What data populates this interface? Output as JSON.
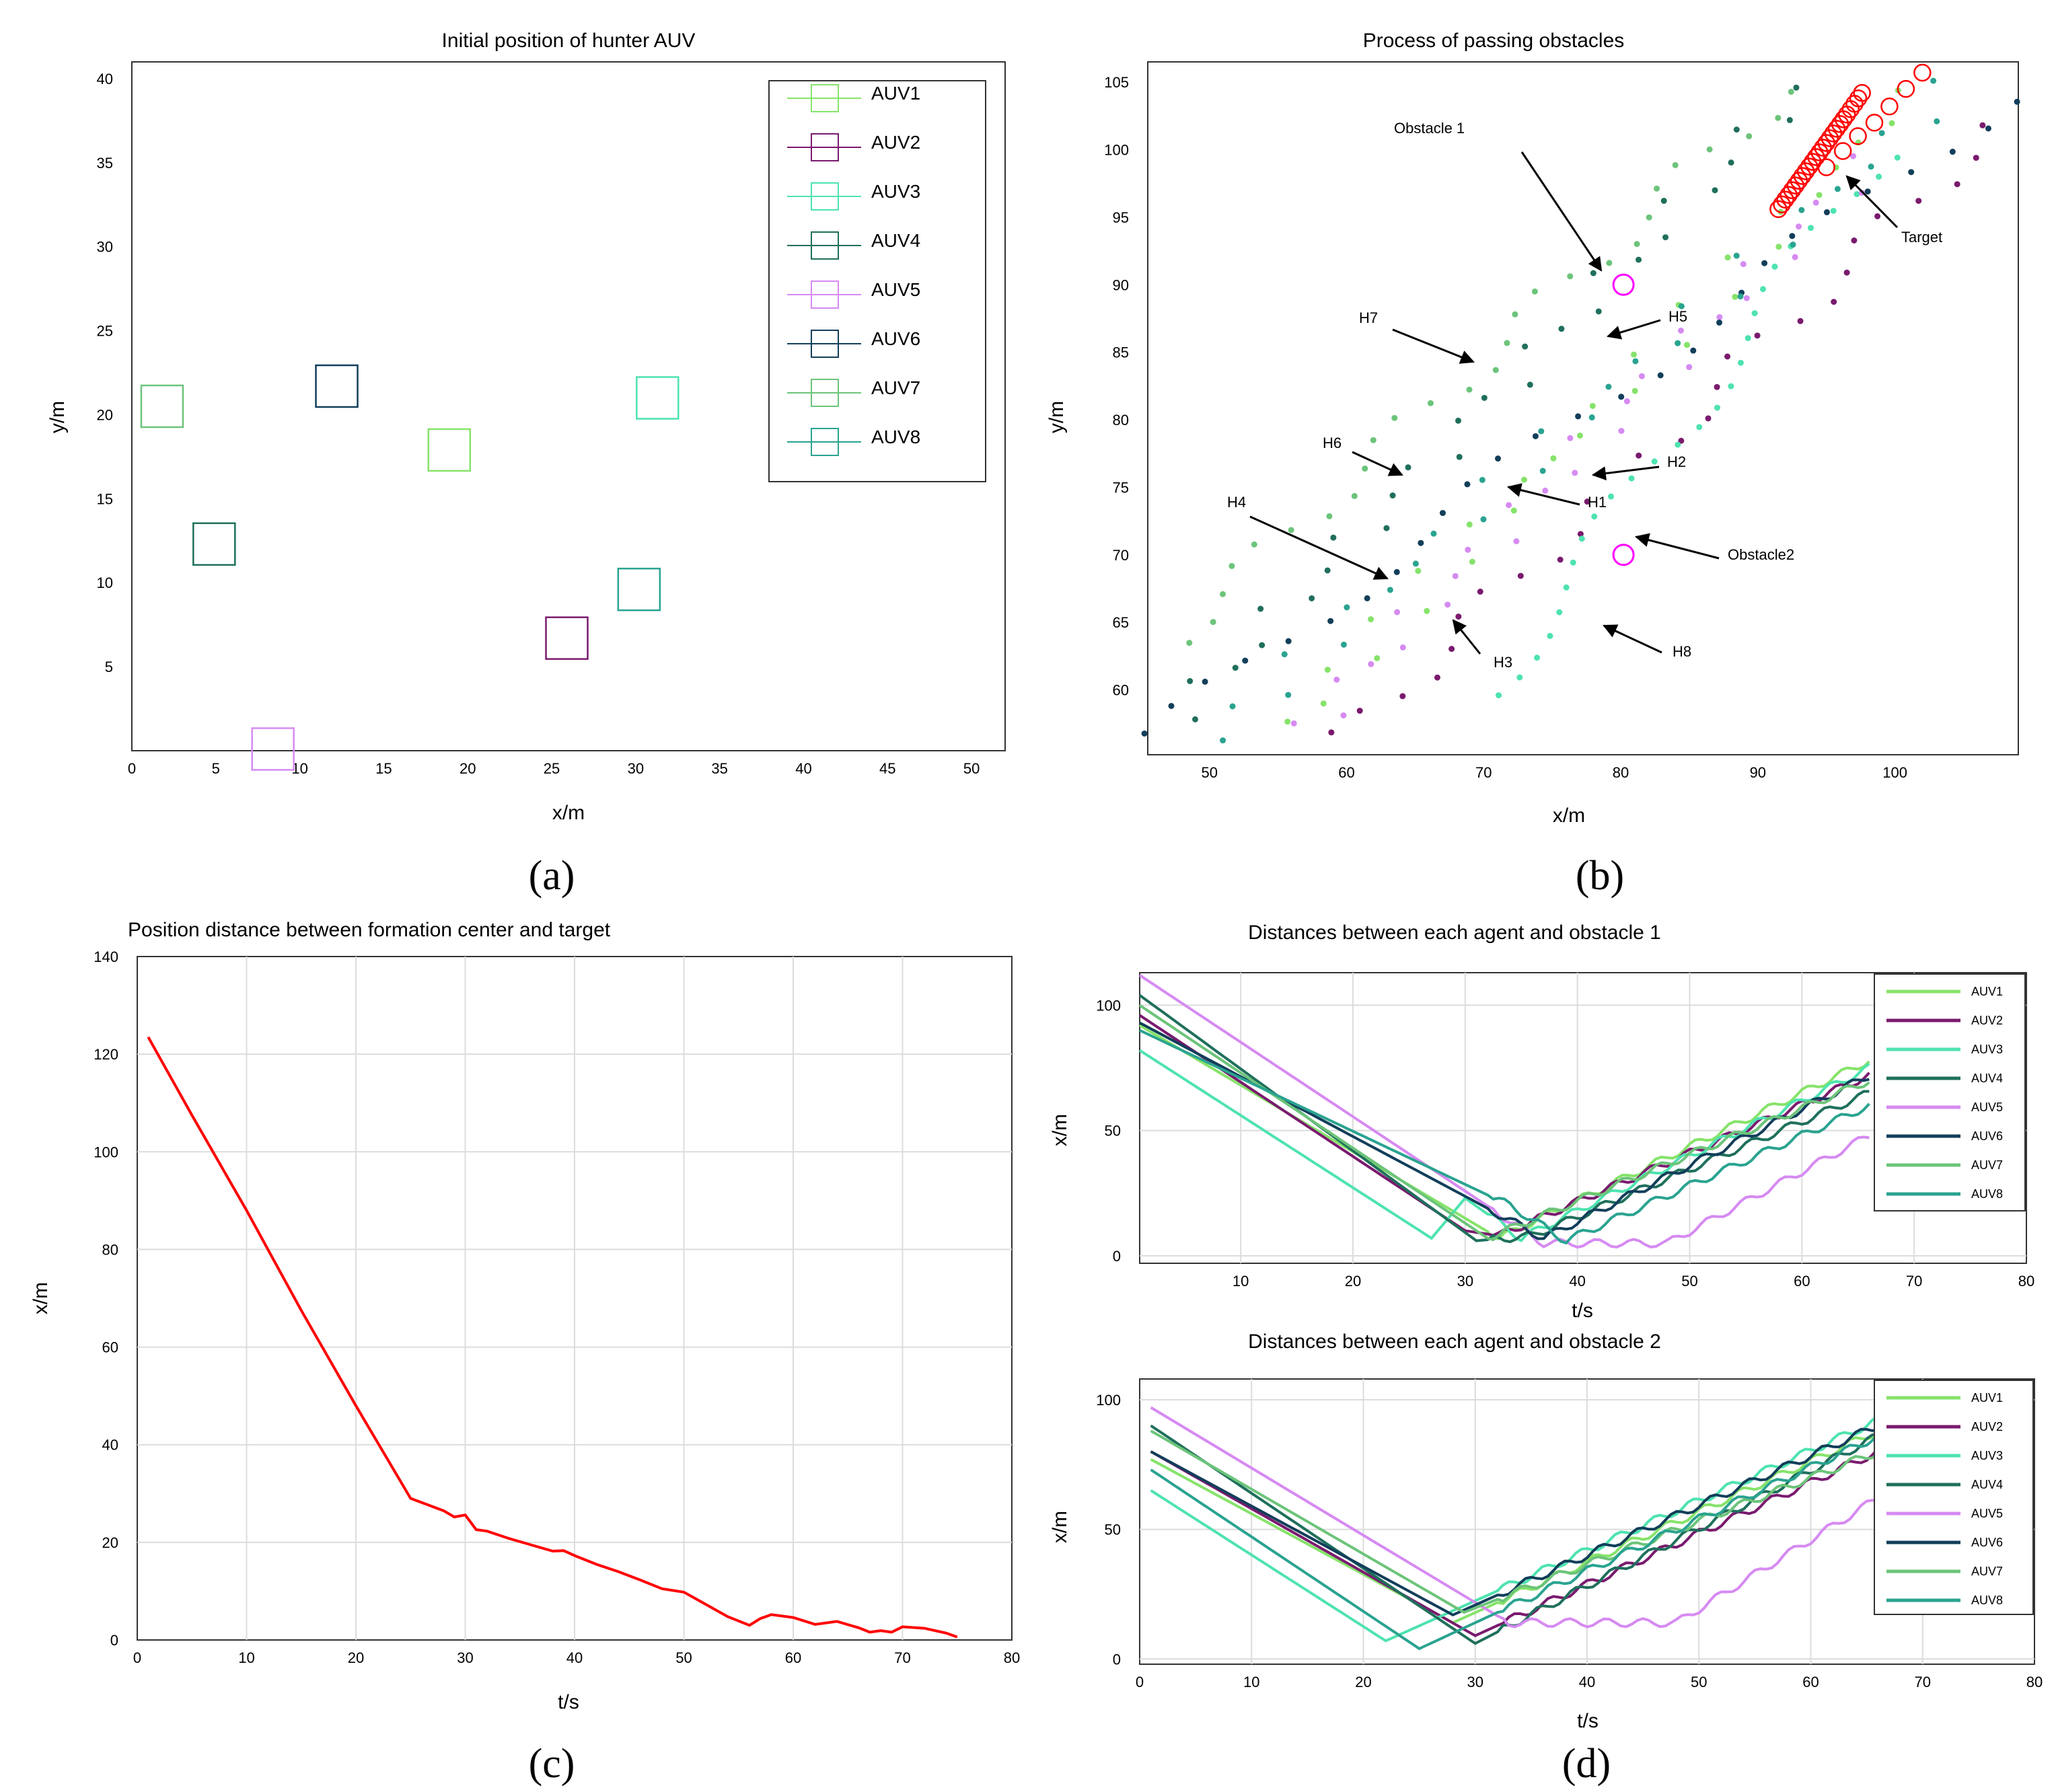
{
  "chart_data": [
    {
      "id": "a",
      "type": "scatter",
      "caption": "(a)",
      "title": "Initial position of hunter AUV",
      "xlabel": "x/m",
      "ylabel": "y/m",
      "xlim": [
        0,
        52
      ],
      "ylim": [
        0,
        41
      ],
      "xticks": [
        0,
        5,
        10,
        15,
        20,
        25,
        30,
        35,
        40,
        45,
        50
      ],
      "yticks": [
        5,
        10,
        15,
        20,
        25,
        30,
        35,
        40
      ],
      "grid": false,
      "legend_position": "top-right",
      "series": [
        {
          "name": "AUV1",
          "color": "#86e36a",
          "x": 18.9,
          "y": 17.9
        },
        {
          "name": "AUV2",
          "color": "#7a1a6e",
          "x": 25.9,
          "y": 6.7
        },
        {
          "name": "AUV3",
          "color": "#4ee3b0",
          "x": 31.3,
          "y": 21.0
        },
        {
          "name": "AUV4",
          "color": "#1f6f5c",
          "x": 4.9,
          "y": 12.3
        },
        {
          "name": "AUV5",
          "color": "#d68af2",
          "x": 8.4,
          "y": 0.1
        },
        {
          "name": "AUV6",
          "color": "#123e5a",
          "x": 12.2,
          "y": 21.7
        },
        {
          "name": "AUV7",
          "color": "#6cc47a",
          "x": 1.8,
          "y": 20.5
        },
        {
          "name": "AUV8",
          "color": "#2aa390",
          "x": 30.2,
          "y": 9.6
        }
      ]
    },
    {
      "id": "b",
      "type": "scatter",
      "caption": "(b)",
      "title": "Process of passing obstacles",
      "xlabel": "x/m",
      "ylabel": "y/m",
      "xlim": [
        45.5,
        109
      ],
      "ylim": [
        55.2,
        106.5
      ],
      "xticks": [
        50,
        60,
        70,
        80,
        90,
        100
      ],
      "yticks": [
        60,
        65,
        70,
        75,
        80,
        85,
        90,
        95,
        100,
        105
      ],
      "grid": false,
      "obstacles": [
        {
          "name": "Obstacle 1",
          "x": 80.2,
          "y": 90.0,
          "color": "#ff00ff"
        },
        {
          "name": "Obstacle2",
          "x": 80.2,
          "y": 70.0,
          "color": "#ff00ff"
        }
      ],
      "target_color": "#ff0000",
      "target_path": [
        [
          91.5,
          95.6
        ],
        [
          92.5,
          97.0
        ],
        [
          93.5,
          98.4
        ],
        [
          94.5,
          99.8
        ],
        [
          95.5,
          101.2
        ],
        [
          96.5,
          102.6
        ],
        [
          97.6,
          104.2
        ],
        [
          95.0,
          98.7
        ],
        [
          96.2,
          99.9
        ],
        [
          97.3,
          101.0
        ],
        [
          98.5,
          102.0
        ],
        [
          99.6,
          103.2
        ],
        [
          100.8,
          104.5
        ],
        [
          102.0,
          105.7
        ]
      ],
      "hunter_tracks": [
        {
          "name": "AUV1",
          "color": "#86e36a",
          "from": [
            56,
            57.5
          ],
          "to": [
            101,
            104
          ]
        },
        {
          "name": "AUV2",
          "color": "#7a1a6e",
          "from": [
            60,
            56.3
          ],
          "to": [
            107,
            101.5
          ]
        },
        {
          "name": "AUV3",
          "color": "#4ee3b0",
          "from": [
            70.5,
            59.9
          ],
          "to": [
            99,
            100
          ]
        },
        {
          "name": "AUV4",
          "color": "#1f6f5c",
          "from": [
            48,
            58.3
          ],
          "to": [
            93,
            104.5
          ]
        },
        {
          "name": "AUV5",
          "color": "#d68af2",
          "from": [
            57,
            57.1
          ],
          "to": [
            98,
            99
          ]
        },
        {
          "name": "AUV6",
          "color": "#123e5a",
          "from": [
            46,
            56.4
          ],
          "to": [
            108,
            104
          ]
        },
        {
          "name": "AUV7",
          "color": "#6cc47a",
          "from": [
            47.5,
            64
          ],
          "to": [
            92,
            104.5
          ]
        },
        {
          "name": "AUV8",
          "color": "#2aa390",
          "from": [
            50.5,
            56.5
          ],
          "to": [
            104,
            104.5
          ]
        }
      ],
      "annotations": [
        {
          "label": "Obstacle 1"
        },
        {
          "label": "Obstacle2"
        },
        {
          "label": "Target"
        },
        {
          "label": "H1"
        },
        {
          "label": "H2"
        },
        {
          "label": "H3"
        },
        {
          "label": "H4"
        },
        {
          "label": "H5"
        },
        {
          "label": "H6"
        },
        {
          "label": "H7"
        },
        {
          "label": "H8"
        }
      ]
    },
    {
      "id": "c",
      "type": "line",
      "caption": "(c)",
      "title": "Position distance between formation center and target",
      "xlabel": "t/s",
      "ylabel": "x/m",
      "xlim": [
        0,
        80
      ],
      "ylim": [
        0,
        140
      ],
      "xticks": [
        0,
        10,
        20,
        30,
        40,
        50,
        60,
        70,
        80
      ],
      "yticks": [
        0,
        20,
        40,
        60,
        80,
        100,
        120,
        140
      ],
      "grid": true,
      "series": [
        {
          "name": "distance",
          "color": "#ff0000",
          "x": [
            1,
            5,
            10,
            15,
            20,
            25,
            28,
            29,
            30,
            31,
            32,
            34,
            36,
            38,
            39,
            40,
            42,
            44,
            46,
            48,
            50,
            52,
            54,
            56,
            57,
            58,
            60,
            62,
            64,
            66,
            67,
            68,
            69,
            70,
            72,
            74,
            75
          ],
          "y": [
            123.5,
            107.5,
            88,
            67.5,
            48,
            29,
            26.5,
            25.2,
            25.6,
            22.6,
            22.3,
            20.8,
            19.5,
            18.2,
            18.3,
            17.3,
            15.5,
            14,
            12.3,
            10.5,
            9.8,
            7.3,
            4.8,
            3,
            4.4,
            5.2,
            4.6,
            3.2,
            3.8,
            2.5,
            1.6,
            1.9,
            1.6,
            2.7,
            2.4,
            1.4,
            0.6
          ]
        }
      ]
    },
    {
      "id": "d1",
      "type": "line",
      "caption": "(d)",
      "title": "Distances between each agent and obstacle 1",
      "xlabel": "t/s",
      "ylabel": "x/m",
      "xlim": [
        1,
        80
      ],
      "ylim": [
        -3,
        113
      ],
      "xticks": [
        10,
        20,
        30,
        40,
        50,
        60,
        70,
        80
      ],
      "yticks": [
        0,
        50,
        100
      ],
      "grid": true,
      "legend_position": "top-right",
      "series": [
        {
          "name": "AUV1",
          "color": "#86e36a",
          "x": [
            1,
            33,
            66
          ],
          "y": [
            92,
            7,
            78
          ]
        },
        {
          "name": "AUV2",
          "color": "#7a1a6e",
          "x": [
            1,
            30,
            33,
            66
          ],
          "y": [
            96,
            10,
            8,
            72
          ]
        },
        {
          "name": "AUV3",
          "color": "#4ee3b0",
          "x": [
            1,
            27,
            30,
            35,
            66
          ],
          "y": [
            82,
            7,
            23,
            7,
            75
          ]
        },
        {
          "name": "AUV4",
          "color": "#1f6f5c",
          "x": [
            1,
            31,
            36,
            66
          ],
          "y": [
            104,
            6,
            8,
            65
          ]
        },
        {
          "name": "AUV5",
          "color": "#d68af2",
          "x": [
            1,
            37,
            48,
            66
          ],
          "y": [
            112,
            5,
            5,
            48
          ]
        },
        {
          "name": "AUV6",
          "color": "#123e5a",
          "x": [
            1,
            37,
            66
          ],
          "y": [
            93,
            7,
            72
          ]
        },
        {
          "name": "AUV7",
          "color": "#6cc47a",
          "x": [
            1,
            32,
            66
          ],
          "y": [
            100,
            7,
            70
          ]
        },
        {
          "name": "AUV8",
          "color": "#2aa390",
          "x": [
            1,
            34,
            39,
            66
          ],
          "y": [
            90,
            20,
            6,
            60
          ]
        }
      ]
    },
    {
      "id": "d2",
      "type": "line",
      "caption": "",
      "title": "Distances between each agent and obstacle 2",
      "xlabel": "t/s",
      "ylabel": "x/m",
      "xlim": [
        0,
        80
      ],
      "ylim": [
        -2,
        108
      ],
      "xticks": [
        0,
        10,
        20,
        30,
        40,
        50,
        60,
        70,
        80
      ],
      "yticks": [
        0,
        50,
        100
      ],
      "grid": true,
      "legend_position": "top-right",
      "series": [
        {
          "name": "AUV1",
          "color": "#86e36a",
          "x": [
            1,
            28,
            66
          ],
          "y": [
            77,
            14,
            88
          ]
        },
        {
          "name": "AUV2",
          "color": "#7a1a6e",
          "x": [
            1,
            30,
            66
          ],
          "y": [
            80,
            9,
            80
          ]
        },
        {
          "name": "AUV3",
          "color": "#4ee3b0",
          "x": [
            1,
            22,
            66
          ],
          "y": [
            65,
            7,
            92
          ]
        },
        {
          "name": "AUV4",
          "color": "#1f6f5c",
          "x": [
            1,
            30,
            66
          ],
          "y": [
            90,
            6,
            86
          ]
        },
        {
          "name": "AUV5",
          "color": "#d68af2",
          "x": [
            1,
            33,
            48,
            66
          ],
          "y": [
            97,
            14,
            14,
            62
          ]
        },
        {
          "name": "AUV6",
          "color": "#123e5a",
          "x": [
            1,
            28,
            66
          ],
          "y": [
            80,
            17,
            90
          ]
        },
        {
          "name": "AUV7",
          "color": "#6cc47a",
          "x": [
            1,
            29,
            66
          ],
          "y": [
            88,
            18,
            80
          ]
        },
        {
          "name": "AUV8",
          "color": "#2aa390",
          "x": [
            1,
            25,
            66
          ],
          "y": [
            73,
            4,
            86
          ]
        }
      ]
    }
  ]
}
